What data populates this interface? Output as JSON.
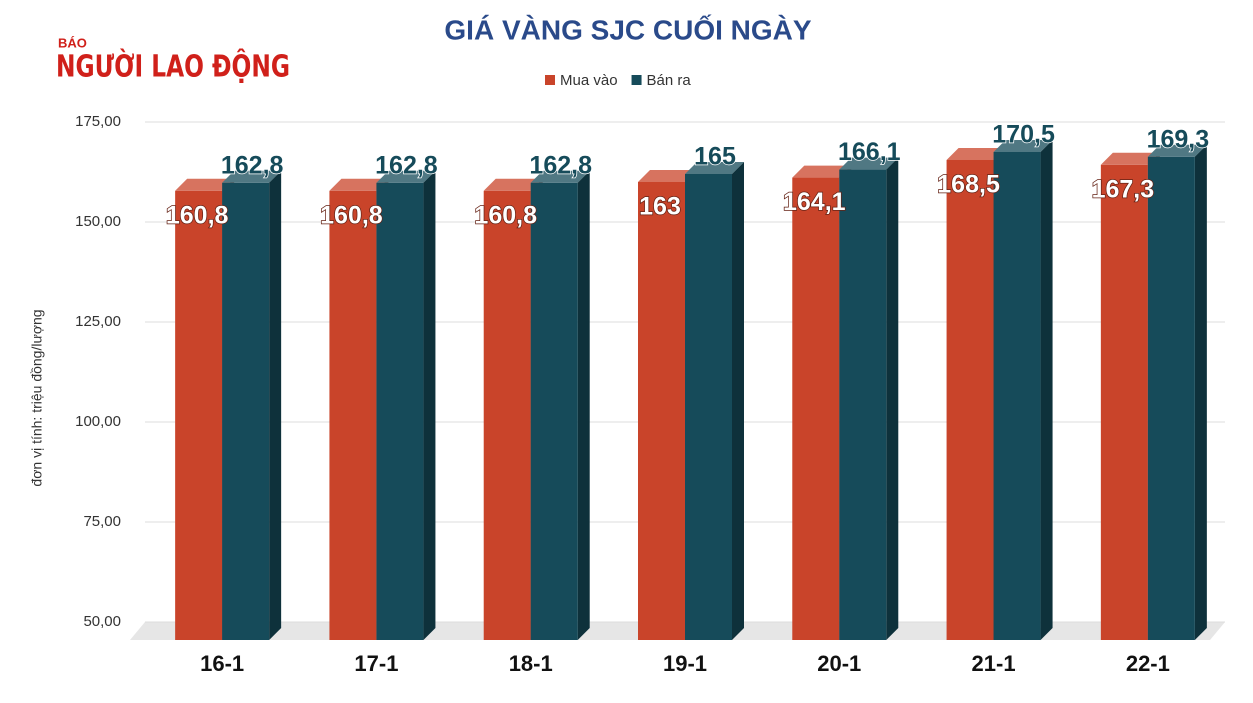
{
  "logo": {
    "small": "BÁO",
    "name": "NGƯỜI LAO ĐỘNG"
  },
  "chart_data": {
    "type": "bar",
    "title": "GIÁ VÀNG SJC CUỐI NGÀY",
    "y_label": "đơn vị tính: triệu đồng/lượng",
    "categories": [
      "16-1",
      "17-1",
      "18-1",
      "19-1",
      "20-1",
      "21-1",
      "22-1"
    ],
    "series": [
      {
        "name": "Mua vào",
        "color": "#c9442a",
        "values": [
          160.8,
          160.8,
          160.8,
          163,
          164.1,
          168.5,
          167.3
        ],
        "value_labels": [
          "160,8",
          "160,8",
          "160,8",
          "163",
          "164,1",
          "168,5",
          "167,3"
        ]
      },
      {
        "name": "Bán ra",
        "color": "#164b5a",
        "values": [
          162.8,
          162.8,
          162.8,
          165,
          166.1,
          170.5,
          169.3
        ],
        "value_labels": [
          "162,8",
          "162,8",
          "162,8",
          "165",
          "166,1",
          "170,5",
          "169,3"
        ]
      }
    ],
    "ylim": [
      50,
      175
    ],
    "yticks": [
      {
        "value": 50,
        "label": "50,00"
      },
      {
        "value": 75,
        "label": "75,00"
      },
      {
        "value": 100,
        "label": "100,00"
      },
      {
        "value": 125,
        "label": "125,00"
      },
      {
        "value": 150,
        "label": "150,00"
      },
      {
        "value": 175,
        "label": "175,00"
      }
    ],
    "grid": true,
    "legend": "top"
  }
}
